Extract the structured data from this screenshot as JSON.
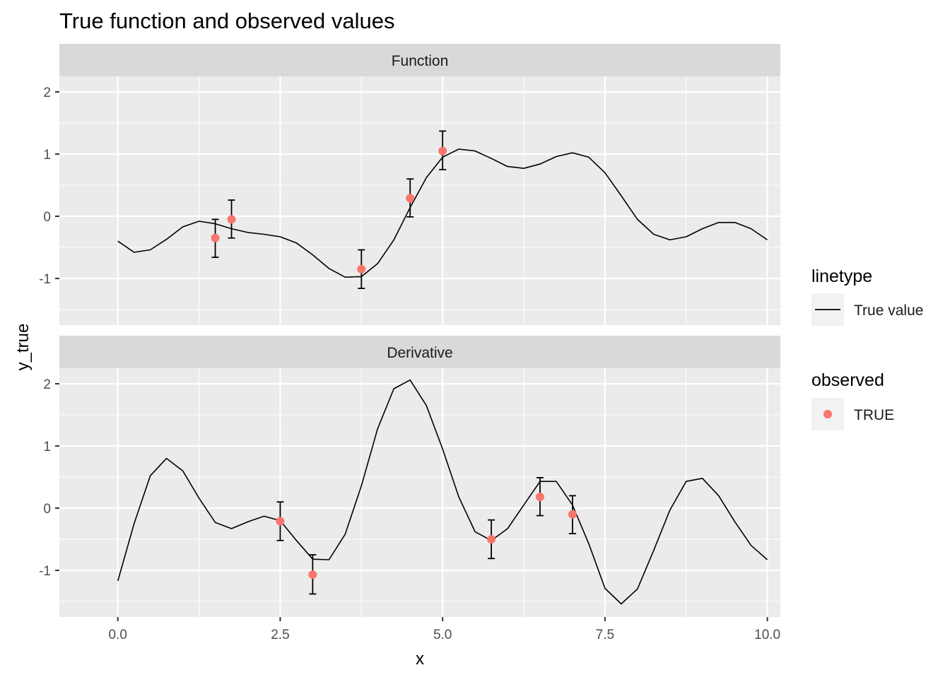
{
  "chart_data": {
    "type": "line",
    "title": "True function and observed values",
    "xlabel": "x",
    "ylabel": "y_true",
    "xlim": [
      -0.9,
      10.2
    ],
    "ylim": [
      -1.75,
      2.25
    ],
    "x_ticks": [
      0.0,
      2.5,
      5.0,
      7.5,
      10.0
    ],
    "x_tick_labels": [
      "0.0",
      "2.5",
      "5.0",
      "7.5",
      "10.0"
    ],
    "y_ticks": [
      -1,
      0,
      1,
      2
    ],
    "y_tick_labels": [
      "-1",
      "0",
      "1",
      "2"
    ],
    "grid": true,
    "legend_position": "right",
    "colors": {
      "panel_bg": "#EBEBEB",
      "strip_bg": "#D9D9D9",
      "grid_major": "#FFFFFF",
      "line": "#000000",
      "point": "#F8766D",
      "text": "#1A1A1A",
      "tick_text": "#4D4D4D",
      "legend_key_bg": "#F2F2F2"
    },
    "legends": [
      {
        "title": "linetype",
        "entries": [
          {
            "label": "True value",
            "key": "line"
          }
        ]
      },
      {
        "title": "observed",
        "entries": [
          {
            "label": "TRUE",
            "key": "point"
          }
        ]
      }
    ],
    "panels": [
      {
        "strip": "Function",
        "line_x": [
          0,
          0.25,
          0.5,
          0.75,
          1.0,
          1.25,
          1.5,
          1.75,
          2.0,
          2.25,
          2.5,
          2.75,
          3.0,
          3.25,
          3.5,
          3.75,
          4.0,
          4.25,
          4.5,
          4.75,
          5.0,
          5.25,
          5.5,
          5.75,
          6.0,
          6.25,
          6.5,
          6.75,
          7.0,
          7.25,
          7.5,
          7.75,
          8.0,
          8.25,
          8.5,
          8.75,
          9.0,
          9.25,
          9.5,
          9.75,
          10.0
        ],
        "line_y": [
          -0.4,
          -0.58,
          -0.54,
          -0.37,
          -0.17,
          -0.08,
          -0.12,
          -0.2,
          -0.26,
          -0.29,
          -0.33,
          -0.43,
          -0.62,
          -0.84,
          -0.98,
          -0.97,
          -0.76,
          -0.38,
          0.14,
          0.62,
          0.95,
          1.08,
          1.05,
          0.93,
          0.8,
          0.77,
          0.84,
          0.96,
          1.02,
          0.95,
          0.7,
          0.33,
          -0.05,
          -0.29,
          -0.38,
          -0.33,
          -0.2,
          -0.1,
          -0.1,
          -0.2,
          -0.38
        ],
        "points": [
          {
            "x": 1.5,
            "y": -0.35,
            "ymin": -0.66,
            "ymax": -0.05
          },
          {
            "x": 1.75,
            "y": -0.05,
            "ymin": -0.35,
            "ymax": 0.26
          },
          {
            "x": 3.75,
            "y": -0.85,
            "ymin": -1.16,
            "ymax": -0.54
          },
          {
            "x": 4.5,
            "y": 0.29,
            "ymin": -0.01,
            "ymax": 0.6
          },
          {
            "x": 5.0,
            "y": 1.05,
            "ymin": 0.75,
            "ymax": 1.37
          }
        ]
      },
      {
        "strip": "Derivative",
        "line_x": [
          0,
          0.25,
          0.5,
          0.75,
          1.0,
          1.25,
          1.5,
          1.75,
          2.0,
          2.25,
          2.5,
          2.75,
          3.0,
          3.25,
          3.5,
          3.75,
          4.0,
          4.25,
          4.5,
          4.75,
          5.0,
          5.25,
          5.5,
          5.75,
          6.0,
          6.25,
          6.5,
          6.75,
          7.0,
          7.25,
          7.5,
          7.75,
          8.0,
          8.25,
          8.5,
          8.75,
          9.0,
          9.25,
          9.5,
          9.75,
          10.0
        ],
        "line_y": [
          -1.17,
          -0.25,
          0.52,
          0.8,
          0.6,
          0.16,
          -0.23,
          -0.33,
          -0.22,
          -0.13,
          -0.2,
          -0.52,
          -0.82,
          -0.83,
          -0.42,
          0.36,
          1.28,
          1.92,
          2.06,
          1.65,
          0.95,
          0.18,
          -0.38,
          -0.52,
          -0.33,
          0.05,
          0.43,
          0.43,
          0.05,
          -0.57,
          -1.29,
          -1.54,
          -1.3,
          -0.68,
          -0.03,
          0.43,
          0.48,
          0.2,
          -0.22,
          -0.6,
          -0.83
        ],
        "points": [
          {
            "x": 2.5,
            "y": -0.21,
            "ymin": -0.52,
            "ymax": 0.1
          },
          {
            "x": 3.0,
            "y": -1.07,
            "ymin": -1.38,
            "ymax": -0.75
          },
          {
            "x": 5.75,
            "y": -0.5,
            "ymin": -0.81,
            "ymax": -0.19
          },
          {
            "x": 6.5,
            "y": 0.18,
            "ymin": -0.12,
            "ymax": 0.49
          },
          {
            "x": 7.0,
            "y": -0.1,
            "ymin": -0.41,
            "ymax": 0.2
          }
        ]
      }
    ]
  }
}
